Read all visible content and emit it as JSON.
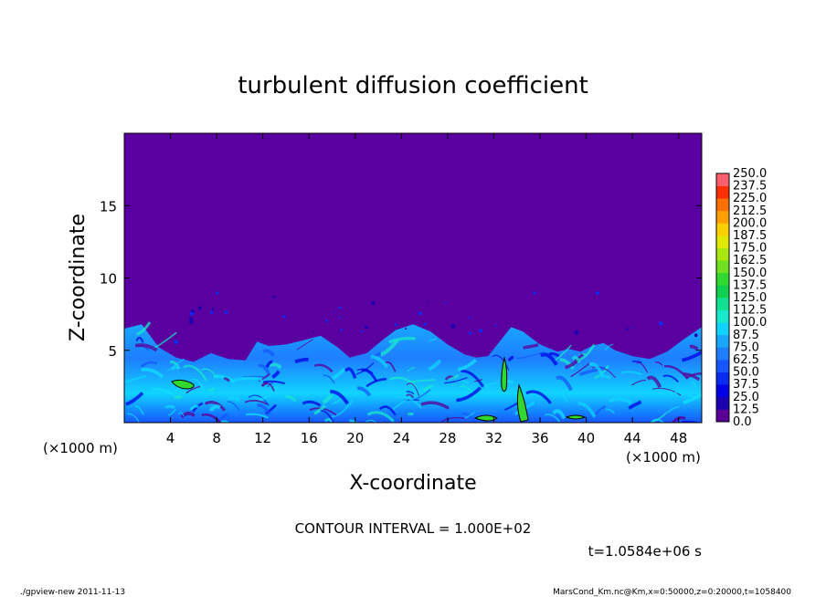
{
  "chart_data": {
    "type": "heatmap",
    "title": "turbulent diffusion coefficient",
    "xlabel": "X-coordinate",
    "ylabel": "Z-coordinate",
    "x_unit_left": "(×1000 m)",
    "x_unit_right": "(×1000 m)",
    "xlim": [
      0,
      50
    ],
    "ylim": [
      0,
      20
    ],
    "x_ticks": [
      "4",
      "8",
      "12",
      "16",
      "20",
      "24",
      "28",
      "32",
      "36",
      "40",
      "44",
      "48"
    ],
    "x_tick_values": [
      4,
      8,
      12,
      16,
      20,
      24,
      28,
      32,
      36,
      40,
      44,
      48
    ],
    "y_ticks": [
      "5",
      "10",
      "15"
    ],
    "y_tick_values": [
      5,
      10,
      15
    ],
    "colorbar_levels": [
      "0.0",
      "12.5",
      "25.0",
      "37.5",
      "50.0",
      "62.5",
      "75.0",
      "87.5",
      "100.0",
      "112.5",
      "125.0",
      "137.5",
      "150.0",
      "162.5",
      "175.0",
      "187.5",
      "200.0",
      "212.5",
      "225.0",
      "237.5",
      "250.0"
    ],
    "colorbar_colors": [
      "#5a0096",
      "#1a00b0",
      "#0000e6",
      "#0a2cf0",
      "#1656ff",
      "#1e7eff",
      "#18a8ff",
      "#10d4ff",
      "#18e8cc",
      "#10e090",
      "#10d050",
      "#30d830",
      "#70e020",
      "#a8e810",
      "#e0e800",
      "#ffd000",
      "#ffa000",
      "#ff7000",
      "#ff3000",
      "#ff6070"
    ],
    "background_color": "#5a00a0",
    "contour_interval_text": "CONTOUR INTERVAL = 1.000E+02",
    "time_text": "t=1.0584e+06 s",
    "layer_top_profile": [
      [
        0,
        6.5
      ],
      [
        1.5,
        6.8
      ],
      [
        3,
        5.2
      ],
      [
        4.5,
        4.5
      ],
      [
        6,
        4.2
      ],
      [
        7.5,
        4.8
      ],
      [
        9,
        4.4
      ],
      [
        10.5,
        4.3
      ],
      [
        11.5,
        5.6
      ],
      [
        12.5,
        5.3
      ],
      [
        14,
        5.4
      ],
      [
        15.5,
        5.7
      ],
      [
        17,
        6.0
      ],
      [
        18.5,
        5.2
      ],
      [
        19.5,
        4.5
      ],
      [
        21,
        4.8
      ],
      [
        22.5,
        5.8
      ],
      [
        23.5,
        6.4
      ],
      [
        25,
        6.8
      ],
      [
        26.5,
        6.3
      ],
      [
        28,
        5.4
      ],
      [
        29.5,
        4.7
      ],
      [
        30.5,
        4.5
      ],
      [
        31.5,
        4.6
      ],
      [
        32.5,
        5.6
      ],
      [
        33.5,
        6.6
      ],
      [
        34.5,
        6.3
      ],
      [
        36,
        5.4
      ],
      [
        37.5,
        4.9
      ],
      [
        38.5,
        5.1
      ],
      [
        39.5,
        4.9
      ],
      [
        40.5,
        5.3
      ],
      [
        41.5,
        5.5
      ],
      [
        42.5,
        5.0
      ],
      [
        44,
        4.6
      ],
      [
        45.5,
        4.4
      ],
      [
        47,
        4.9
      ],
      [
        48.5,
        5.8
      ],
      [
        50,
        6.6
      ]
    ]
  },
  "footer": {
    "left": "./gpview-new   2011-11-13",
    "right": "MarsCond_Km.nc@Km,x=0:50000,z=0:20000,t=1058400"
  }
}
